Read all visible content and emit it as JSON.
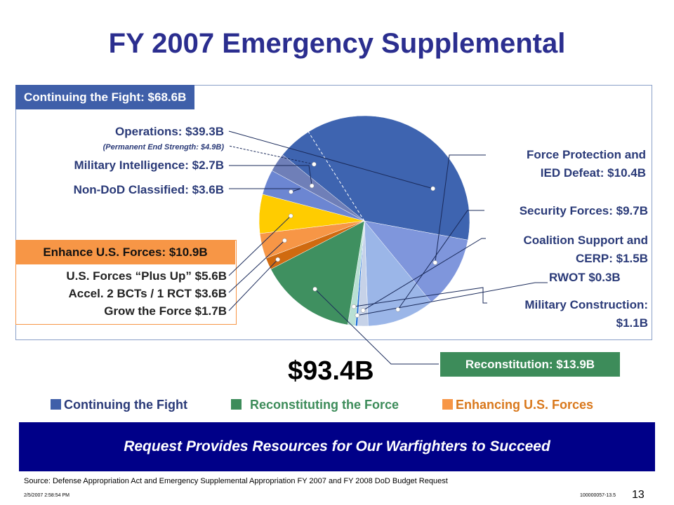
{
  "title": "FY 2007 Emergency Supplemental",
  "groups": {
    "fight": {
      "header": "Continuing the Fight: $68.6B",
      "color": "#3f5fa9"
    },
    "enhance": {
      "header": "Enhance U.S. Forces: $10.9B",
      "color": "#f79646"
    },
    "reconstitution": {
      "header": "Reconstitution: $13.9B",
      "color": "#3d8c5a"
    }
  },
  "labels": {
    "operations": "Operations: $39.3B",
    "end_strength": "(Permanent End Strength: $4.9B)",
    "intel": "Military Intelligence: $2.7B",
    "nondod": "Non-DoD Classified: $3.6B",
    "force_protection": [
      "Force Protection and",
      "IED Defeat: $10.4B"
    ],
    "security": "Security Forces: $9.7B",
    "coalition": [
      "Coalition Support and",
      "CERP: $1.5B"
    ],
    "rwot": "RWOT $0.3B",
    "milcon": [
      "Military Construction:",
      "$1.1B"
    ],
    "plus_up": "U.S. Forces “Plus Up” $5.6B",
    "bcts": "Accel. 2 BCTs / 1 RCT $3.6B",
    "grow": "Grow the Force $1.7B"
  },
  "total": "$93.4B",
  "legend": [
    {
      "label": "Continuing the Fight",
      "color": "#3f5fa9",
      "text_color": "#2a3a78"
    },
    {
      "label": "Reconstituting the Force",
      "color": "#3d8c5a",
      "text_color": "#3d8c5a"
    },
    {
      "label": "Enhancing U.S. Forces",
      "color": "#f79646",
      "text_color": "#d9781c"
    }
  ],
  "banner": "Request Provides Resources for Our Warfighters to Succeed",
  "source": "Source:  Defense Appropriation Act and Emergency Supplemental Appropriation FY 2007 and FY 2008 DoD Budget Request",
  "timestamp": "2/5/2007 2:58:54 PM",
  "doc_id": "100000057-13.5",
  "page_number": "13",
  "chart_data": {
    "type": "pie",
    "title": "",
    "total": 93.4,
    "unit": "$B",
    "slices": [
      {
        "name": "Operations",
        "value": 39.3,
        "color": "#3e64b0",
        "group": "Continuing the Fight"
      },
      {
        "name": "Force Protection and IED Defeat",
        "value": 10.4,
        "color": "#7f96dc",
        "group": "Continuing the Fight"
      },
      {
        "name": "Security Forces",
        "value": 9.7,
        "color": "#9bb6e8",
        "group": "Continuing the Fight"
      },
      {
        "name": "Coalition Support and CERP",
        "value": 1.5,
        "color": "#c6d2e8",
        "group": "Continuing the Fight"
      },
      {
        "name": "RWOT",
        "value": 0.3,
        "color": "#1f6ed6",
        "group": "Continuing the Fight"
      },
      {
        "name": "Military Construction",
        "value": 1.1,
        "color": "#b9e0d4",
        "group": "Continuing the Fight"
      },
      {
        "name": "Reconstitution",
        "value": 13.9,
        "color": "#3f9060",
        "group": "Reconstituting the Force"
      },
      {
        "name": "Grow the Force",
        "value": 1.7,
        "color": "#d06a10",
        "group": "Enhancing U.S. Forces"
      },
      {
        "name": "Accel. 2 BCTs / 1 RCT",
        "value": 3.6,
        "color": "#f79646",
        "group": "Enhancing U.S. Forces"
      },
      {
        "name": "U.S. Forces “Plus Up”",
        "value": 5.6,
        "color": "#ffcc00",
        "group": "Enhancing U.S. Forces"
      },
      {
        "name": "Non-DoD Classified",
        "value": 3.6,
        "color": "#6c86d2",
        "group": "Continuing the Fight"
      },
      {
        "name": "Military Intelligence",
        "value": 2.7,
        "color": "#6f7fb8",
        "group": "Continuing the Fight"
      }
    ],
    "sub_annotation": {
      "name": "Permanent End Strength",
      "value": 4.9,
      "within": "Operations"
    }
  }
}
